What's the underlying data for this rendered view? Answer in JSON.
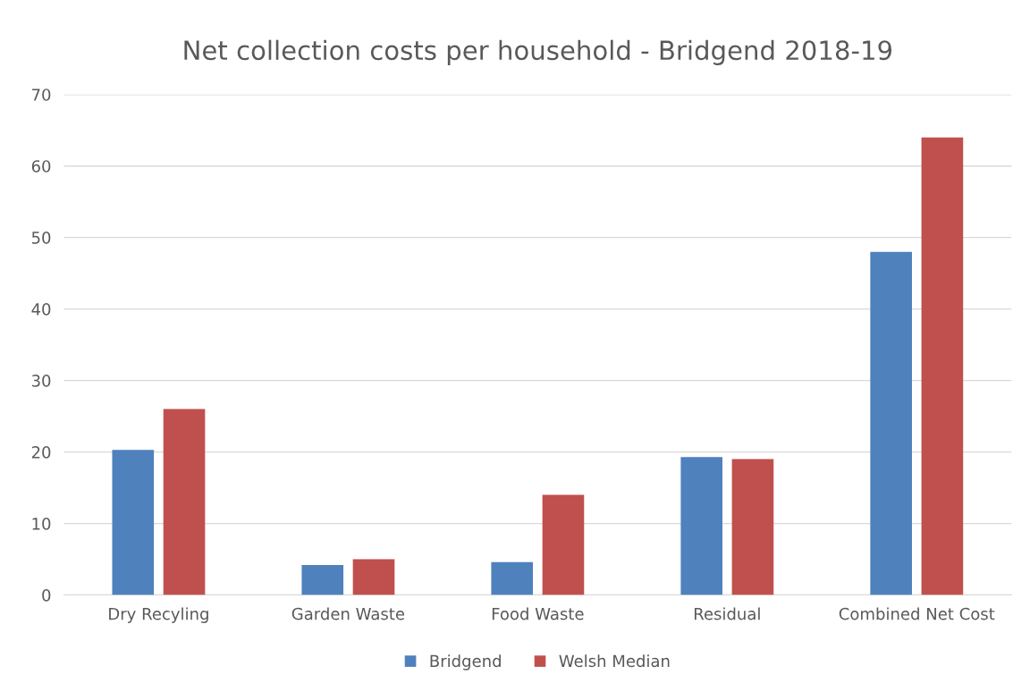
{
  "chart_data": {
    "type": "bar",
    "title": "Net collection costs per household - Bridgend 2018-19",
    "categories": [
      "Dry Recyling",
      "Garden Waste",
      "Food Waste",
      "Residual",
      "Combined Net Cost"
    ],
    "series": [
      {
        "name": "Bridgend",
        "color": "#4f81bd",
        "values": [
          20.3,
          4.2,
          4.6,
          19.3,
          48
        ]
      },
      {
        "name": "Welsh Median",
        "color": "#c0504d",
        "values": [
          26,
          5,
          14,
          19,
          64
        ]
      }
    ],
    "ylim": [
      0,
      70
    ],
    "yticks": [
      0,
      10,
      20,
      30,
      40,
      50,
      60,
      70
    ],
    "grid": "y",
    "legend": "bottom"
  }
}
